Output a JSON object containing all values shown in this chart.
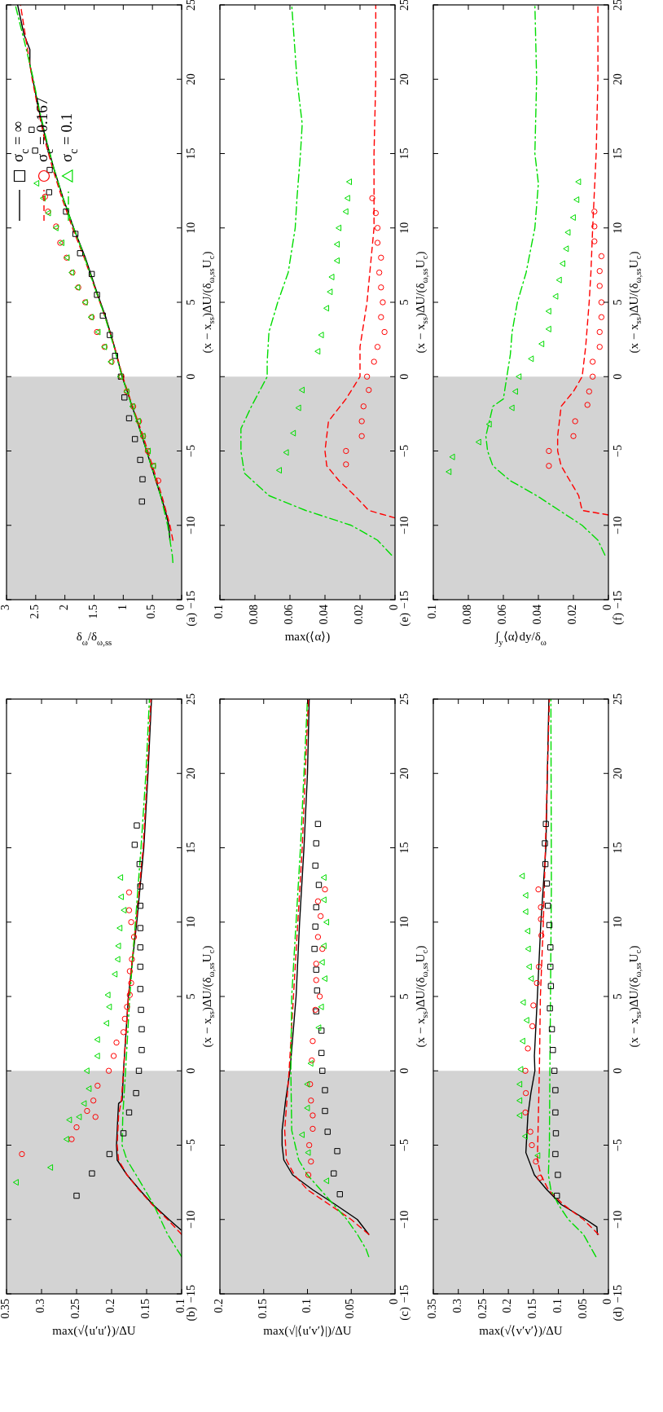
{
  "chart_data": [
    {
      "type": "line",
      "title": "(a)",
      "ylabel": "(x − x$_{ss}$)ΔU/(δ$_{ω,ss}$U$_{c}$)",
      "xlabel": "δ$_{ω}$/δ$_{ω,ss}$",
      "ylim": [
        -15,
        25
      ],
      "xlim": [
        3,
        0
      ],
      "yticks": [
        {
          "value": -15,
          "label": "−15"
        },
        {
          "value": -10,
          "label": "−10"
        },
        {
          "value": -5,
          "label": "−5"
        },
        0,
        5,
        10,
        15,
        20,
        25
      ],
      "xticks": [
        0,
        0.5,
        1,
        1.5,
        2,
        2.5,
        3
      ],
      "legend": "top left",
      "bands": [
        {
          "axis": "y",
          "from": -15,
          "to": 0,
          "color": "#d3d3d3"
        }
      ],
      "series": [
        {
          "type": "line",
          "name": "σ$_{c}$ = ∞",
          "color": "#000000",
          "line_style": "solid",
          "values": [
            -11,
            -10,
            -9,
            -8,
            -7,
            -6,
            -5,
            -4,
            -3,
            -2,
            -1,
            0,
            2,
            4,
            6,
            8,
            10,
            12,
            14,
            16,
            18,
            20,
            21,
            22,
            23,
            25
          ],
          "x": [
            0.2,
            0.22,
            0.28,
            0.36,
            0.44,
            0.52,
            0.6,
            0.68,
            0.76,
            0.85,
            0.93,
            1.02,
            1.15,
            1.3,
            1.48,
            1.65,
            1.85,
            2.03,
            2.19,
            2.33,
            2.45,
            2.55,
            2.6,
            2.6,
            2.7,
            2.81
          ]
        },
        {
          "type": "line",
          "name": "σ$_{c}$ = 0.167",
          "color": "#ff0000",
          "line_style": "dashed",
          "values": [
            -11,
            -10,
            -8,
            -6,
            -4,
            -2,
            0,
            2,
            4,
            6,
            8,
            10,
            12,
            14,
            16,
            18,
            20,
            22,
            25
          ],
          "x": [
            0.15,
            0.2,
            0.34,
            0.5,
            0.66,
            0.84,
            1.01,
            1.15,
            1.31,
            1.49,
            1.67,
            1.87,
            2.05,
            2.21,
            2.35,
            2.46,
            2.56,
            2.64,
            2.76
          ]
        },
        {
          "type": "line",
          "name": "σ$_{c}$ = 0.1",
          "color": "#00dd00",
          "line_style": "dashdot",
          "values": [
            -12.5,
            -12,
            -10,
            -8,
            -6,
            -4,
            -2,
            0,
            2,
            4,
            6,
            8,
            10,
            12,
            14,
            16,
            18,
            20,
            22,
            25
          ],
          "x": [
            0.15,
            0.16,
            0.24,
            0.36,
            0.52,
            0.68,
            0.85,
            1.02,
            1.16,
            1.31,
            1.49,
            1.66,
            1.85,
            2.03,
            2.19,
            2.32,
            2.44,
            2.54,
            2.66,
            2.85
          ]
        },
        {
          "type": "scatter",
          "marker": "square",
          "color": "#000000",
          "values": [
            16.6,
            15.2,
            13.9,
            12.4,
            11.1,
            9.6,
            8.3,
            6.9,
            5.5,
            4.1,
            2.8,
            1.4,
            0,
            -1.4,
            -2.8,
            -4.2,
            -5.6,
            -6.9,
            -8.4
          ],
          "x": [
            2.57,
            2.51,
            2.26,
            2.27,
            1.98,
            1.82,
            1.74,
            1.54,
            1.45,
            1.35,
            1.23,
            1.14,
            1.04,
            0.98,
            0.9,
            0.8,
            0.71,
            0.67,
            0.68
          ]
        },
        {
          "type": "scatter",
          "marker": "circle",
          "color": "#ff0000",
          "values": [
            12.1,
            11.1,
            10.1,
            9,
            8,
            7,
            6,
            5,
            4,
            3,
            2,
            1,
            0,
            -1,
            -2,
            -3,
            -4,
            -5,
            -6,
            -7
          ],
          "x": [
            2.34,
            2.29,
            2.15,
            2.08,
            1.97,
            1.87,
            1.77,
            1.65,
            1.54,
            1.45,
            1.32,
            1.2,
            1.03,
            0.94,
            0.83,
            0.73,
            0.66,
            0.58,
            0.49,
            0.4
          ]
        },
        {
          "type": "scatter",
          "marker": "triangle",
          "color": "#00dd00",
          "values": [
            13,
            12,
            11,
            10,
            9,
            8,
            7,
            6,
            5,
            4,
            3,
            2,
            1,
            0,
            -1,
            -2,
            -3,
            -4,
            -5,
            -6
          ],
          "x": [
            2.48,
            2.37,
            2.28,
            2.15,
            2.05,
            1.96,
            1.88,
            1.78,
            1.65,
            1.55,
            1.43,
            1.32,
            1.21,
            1.05,
            0.94,
            0.84,
            0.74,
            0.66,
            0.57,
            0.48
          ]
        }
      ]
    },
    {
      "type": "line",
      "title": "(b)",
      "ylabel": "(x − x$_{ss}$)ΔU/(δ$_{ω,ss}$U$_{c}$)",
      "xlabel": "max(√⟨u′u′⟩)/ΔU",
      "ylim": [
        -15,
        25
      ],
      "xlim": [
        0.35,
        0.1
      ],
      "yticks": [
        {
          "value": -15,
          "label": "−15"
        },
        {
          "value": -10,
          "label": "−10"
        },
        {
          "value": -5,
          "label": "−5"
        },
        0,
        5,
        10,
        15,
        20,
        25
      ],
      "xticks": [
        0.1,
        0.15,
        0.2,
        0.25,
        0.3,
        0.35
      ],
      "bands": [
        {
          "axis": "y",
          "from": -15,
          "to": 0,
          "color": "#d3d3d3"
        }
      ],
      "series": [
        {
          "type": "line",
          "color": "#000000",
          "line_style": "solid",
          "values": [
            -10.7,
            -10,
            -9,
            -8,
            -7,
            -6,
            -5,
            -3,
            -2.2,
            -2,
            0,
            5,
            10,
            15,
            20,
            25
          ],
          "x": [
            0.101,
            0.118,
            0.141,
            0.16,
            0.178,
            0.192,
            0.193,
            0.191,
            0.19,
            0.185,
            0.183,
            0.176,
            0.164,
            0.154,
            0.148,
            0.143
          ]
        },
        {
          "type": "line",
          "color": "#ff0000",
          "line_style": "dashed",
          "values": [
            -11,
            -10,
            -9,
            -8,
            -7,
            -6,
            -5,
            -3,
            -2,
            0,
            5,
            10,
            15,
            20,
            25
          ],
          "x": [
            0.1,
            0.12,
            0.142,
            0.161,
            0.178,
            0.19,
            0.192,
            0.19,
            0.186,
            0.183,
            0.176,
            0.165,
            0.155,
            0.149,
            0.144
          ]
        },
        {
          "type": "line",
          "color": "#00dd00",
          "line_style": "dashdot",
          "values": [
            -12.5,
            -11,
            -9,
            -7,
            -6,
            -5,
            -3,
            0,
            5,
            10,
            15,
            20,
            25
          ],
          "x": [
            0.1,
            0.12,
            0.14,
            0.165,
            0.178,
            0.185,
            0.184,
            0.18,
            0.174,
            0.166,
            0.158,
            0.151,
            0.146
          ]
        },
        {
          "type": "scatter",
          "marker": "square",
          "color": "#000000",
          "values": [
            16.5,
            15.2,
            13.9,
            12.4,
            11.1,
            9.6,
            8.3,
            7,
            5.5,
            4.1,
            2.8,
            1.4,
            0,
            -1.5,
            -2.8,
            -4.2,
            -5.6,
            -6.9,
            -8.4
          ],
          "x": [
            0.164,
            0.167,
            0.16,
            0.159,
            0.159,
            0.159,
            0.159,
            0.159,
            0.159,
            0.158,
            0.157,
            0.157,
            0.161,
            0.165,
            0.175,
            0.183,
            0.203,
            0.228,
            0.25
          ]
        },
        {
          "type": "scatter",
          "marker": "circle",
          "color": "#ff0000",
          "values": [
            12,
            10.8,
            10,
            9,
            7.5,
            6.7,
            5.9,
            5.1,
            4.3,
            3.5,
            2.6,
            1.9,
            1,
            0,
            -1,
            -2,
            -2.7,
            -3.1,
            -3.8,
            -4.6,
            -5.6
          ],
          "x": [
            0.175,
            0.175,
            0.172,
            0.168,
            0.171,
            0.174,
            0.172,
            0.174,
            0.178,
            0.181,
            0.183,
            0.193,
            0.197,
            0.204,
            0.22,
            0.226,
            0.235,
            0.223,
            0.25,
            0.257,
            0.328
          ]
        },
        {
          "type": "scatter",
          "marker": "triangle",
          "color": "#00dd00",
          "values": [
            13,
            11.7,
            10.8,
            9.6,
            8.4,
            7.5,
            6.5,
            5.1,
            4.3,
            3.2,
            2.1,
            1,
            0,
            -1.2,
            -2.2,
            -3.1,
            -3.3,
            -4.6,
            -6.5,
            -7.5
          ],
          "x": [
            0.187,
            0.186,
            0.182,
            0.188,
            0.19,
            0.191,
            0.195,
            0.205,
            0.203,
            0.207,
            0.22,
            0.22,
            0.235,
            0.232,
            0.239,
            0.246,
            0.26,
            0.264,
            0.287,
            0.336
          ]
        }
      ]
    },
    {
      "type": "line",
      "title": "(c)",
      "ylabel": "(x − x$_{ss}$)ΔU/(δ$_{ω,ss}$U$_{c}$)",
      "xlabel": "max(√|⟨u′v′⟩|)/ΔU",
      "ylim": [
        -15,
        25
      ],
      "xlim": [
        0.2,
        0
      ],
      "yticks": [
        {
          "value": -15,
          "label": "−15"
        },
        {
          "value": -10,
          "label": "−10"
        },
        {
          "value": -5,
          "label": "−5"
        },
        0,
        5,
        10,
        15,
        20,
        25
      ],
      "xticks": [
        0,
        0.05,
        0.1,
        0.15,
        0.2
      ],
      "bands": [
        {
          "axis": "y",
          "from": -15,
          "to": 0,
          "color": "#d3d3d3"
        }
      ],
      "series": [
        {
          "type": "line",
          "color": "#000000",
          "line_style": "solid",
          "values": [
            -11,
            -10,
            -9,
            -8,
            -7,
            -6,
            -5,
            -4,
            -2,
            0,
            5,
            10,
            15,
            20,
            25
          ],
          "x": [
            0.03,
            0.043,
            0.068,
            0.094,
            0.117,
            0.127,
            0.129,
            0.129,
            0.125,
            0.12,
            0.113,
            0.109,
            0.104,
            0.1,
            0.098
          ]
        },
        {
          "type": "line",
          "color": "#ff0000",
          "line_style": "dashed",
          "values": [
            -11,
            -10,
            -9,
            -8,
            -7,
            -6,
            -4,
            0,
            5,
            15,
            25
          ],
          "x": [
            0.03,
            0.05,
            0.075,
            0.1,
            0.115,
            0.124,
            0.126,
            0.121,
            0.116,
            0.106,
            0.099
          ]
        },
        {
          "type": "line",
          "color": "#00dd00",
          "line_style": "dashdot",
          "values": [
            -12.5,
            -12,
            -11,
            -10,
            -9,
            -8,
            -7,
            -6,
            -4,
            0,
            5,
            15,
            25
          ],
          "x": [
            0.03,
            0.033,
            0.043,
            0.055,
            0.07,
            0.085,
            0.1,
            0.11,
            0.118,
            0.119,
            0.118,
            0.108,
            0.1
          ]
        },
        {
          "type": "scatter",
          "marker": "square",
          "color": "#000000",
          "values": [
            16.6,
            15.3,
            13.8,
            12.5,
            11,
            9.7,
            8.2,
            6.8,
            5.4,
            4,
            2.7,
            1.2,
            0,
            -1.3,
            -2.7,
            -4.1,
            -5.4,
            -6.9,
            -8.3
          ],
          "x": [
            0.088,
            0.09,
            0.091,
            0.087,
            0.09,
            0.091,
            0.092,
            0.09,
            0.089,
            0.09,
            0.084,
            0.084,
            0.083,
            0.08,
            0.08,
            0.077,
            0.066,
            0.07,
            0.063
          ]
        },
        {
          "type": "scatter",
          "marker": "circle",
          "color": "#ff0000",
          "values": [
            12.2,
            11.4,
            10.4,
            9,
            8.2,
            7.2,
            6.1,
            5,
            4.1,
            2,
            0.7,
            -0.9,
            -2,
            -3,
            -3.9,
            -5,
            -6.1,
            -7
          ],
          "x": [
            0.08,
            0.088,
            0.085,
            0.088,
            0.083,
            0.09,
            0.09,
            0.086,
            0.091,
            0.094,
            0.095,
            0.097,
            0.096,
            0.094,
            0.094,
            0.098,
            0.096,
            0.099
          ]
        },
        {
          "type": "scatter",
          "marker": "triangle",
          "color": "#00dd00",
          "values": [
            13,
            11.5,
            10,
            8.4,
            7.3,
            6.2,
            4.3,
            2.9,
            0.5,
            -0.9,
            -2.5,
            -4.3,
            -5.5,
            -7.4
          ],
          "x": [
            0.081,
            0.081,
            0.078,
            0.081,
            0.083,
            0.08,
            0.084,
            0.087,
            0.096,
            0.1,
            0.1,
            0.106,
            0.099,
            0.078
          ]
        }
      ]
    },
    {
      "type": "line",
      "title": "(d)",
      "ylabel": "(x − x$_{ss}$)ΔU/(δ$_{ω,ss}$U$_{c}$)",
      "xlabel": "max(√⟨v′v′⟩)/ΔU",
      "ylim": [
        -15,
        25
      ],
      "xlim": [
        0.35,
        0
      ],
      "yticks": [
        {
          "value": -15,
          "label": "−15"
        },
        {
          "value": -10,
          "label": "−10"
        },
        {
          "value": -5,
          "label": "−5"
        },
        0,
        5,
        10,
        15,
        20,
        25
      ],
      "xticks": [
        0,
        0.05,
        0.1,
        0.15,
        0.2,
        0.25,
        0.3,
        0.35
      ],
      "bands": [
        {
          "axis": "y",
          "from": -15,
          "to": 0,
          "color": "#d3d3d3"
        }
      ],
      "series": [
        {
          "type": "line",
          "color": "#000000",
          "line_style": "solid",
          "values": [
            -11,
            -10.5,
            -10,
            -9,
            -8,
            -7,
            -5.5,
            -3,
            -1.5,
            0,
            1,
            5,
            10,
            15,
            25
          ],
          "x": [
            0.022,
            0.023,
            0.045,
            0.094,
            0.123,
            0.148,
            0.165,
            0.161,
            0.155,
            0.147,
            0.148,
            0.142,
            0.135,
            0.125,
            0.119
          ]
        },
        {
          "type": "line",
          "color": "#ff0000",
          "line_style": "dashed",
          "values": [
            -11,
            -10,
            -9,
            -8,
            -7,
            -6,
            -3,
            0,
            5,
            10,
            25
          ],
          "x": [
            0.02,
            0.05,
            0.09,
            0.12,
            0.135,
            0.142,
            0.14,
            0.138,
            0.136,
            0.13,
            0.118
          ]
        },
        {
          "type": "line",
          "color": "#00dd00",
          "line_style": "dashdot",
          "values": [
            -12.5,
            -11,
            -10,
            -9,
            -8,
            -7,
            -5,
            0,
            12.5,
            25
          ],
          "x": [
            0.025,
            0.05,
            0.08,
            0.1,
            0.115,
            0.12,
            0.118,
            0.117,
            0.114,
            0.115
          ]
        },
        {
          "type": "scatter",
          "marker": "square",
          "color": "#000000",
          "values": [
            16.6,
            15.3,
            13.9,
            12.6,
            11.1,
            9.8,
            8.3,
            7,
            5.7,
            4.2,
            2.8,
            1.4,
            0,
            -1.3,
            -2.8,
            -4.2,
            -5.6,
            -7,
            -8.4
          ],
          "x": [
            0.125,
            0.127,
            0.126,
            0.123,
            0.121,
            0.118,
            0.116,
            0.116,
            0.115,
            0.117,
            0.113,
            0.111,
            0.108,
            0.106,
            0.106,
            0.105,
            0.106,
            0.101,
            0.103
          ]
        },
        {
          "type": "scatter",
          "marker": "circle",
          "color": "#ff0000",
          "values": [
            12.2,
            11,
            10.2,
            9.1,
            7,
            5.9,
            4.4,
            3,
            1.5,
            0,
            -1.5,
            -2.8,
            -4.1,
            -5,
            -6.1,
            -7.2
          ],
          "x": [
            0.14,
            0.135,
            0.135,
            0.134,
            0.139,
            0.143,
            0.15,
            0.152,
            0.161,
            0.166,
            0.165,
            0.166,
            0.156,
            0.153,
            0.145,
            0.137
          ]
        },
        {
          "type": "scatter",
          "marker": "triangle",
          "color": "#00dd00",
          "values": [
            13.1,
            11.8,
            10.7,
            9.4,
            8.2,
            7,
            6.2,
            4.6,
            3.4,
            2,
            0.1,
            -0.9,
            -2,
            -3,
            -4.4,
            -5.7
          ],
          "x": [
            0.172,
            0.165,
            0.165,
            0.161,
            0.16,
            0.158,
            0.154,
            0.17,
            0.163,
            0.171,
            0.175,
            0.177,
            0.177,
            0.177,
            0.166,
            0.141
          ]
        }
      ]
    },
    {
      "type": "line",
      "title": "(e)",
      "ylabel": "(x − x$_{ss}$)ΔU/(δ$_{ω,ss}$U$_{c}$)",
      "xlabel": "max(⟨α⟩)",
      "ylim": [
        -15,
        25
      ],
      "xlim": [
        0.1,
        0
      ],
      "yticks": [
        {
          "value": -15,
          "label": "−15"
        },
        {
          "value": -10,
          "label": "−10"
        },
        {
          "value": -5,
          "label": "−5"
        },
        0,
        5,
        10,
        15,
        20,
        25
      ],
      "xticks": [
        0,
        0.02,
        0.04,
        0.06,
        0.08,
        0.1
      ],
      "bands": [
        {
          "axis": "y",
          "from": -15,
          "to": 0,
          "color": "#d3d3d3"
        }
      ],
      "series": [
        {
          "type": "line",
          "color": "#ff0000",
          "line_style": "dashed",
          "values": [
            -9.5,
            -9,
            -8,
            -7,
            -6,
            -5,
            -3,
            -1.5,
            0,
            2,
            5,
            10,
            15,
            20,
            25
          ],
          "x": [
            0,
            0.015,
            0.023,
            0.032,
            0.039,
            0.04,
            0.038,
            0.028,
            0.02,
            0.02,
            0.016,
            0.012,
            0.012,
            0.011,
            0.011
          ]
        },
        {
          "type": "line",
          "color": "#00dd00",
          "line_style": "dashdot",
          "values": [
            -12,
            -11,
            -10,
            -9,
            -8,
            -6.5,
            -5,
            -3.5,
            -2,
            0,
            1,
            3,
            5,
            7,
            10,
            12,
            15,
            17,
            20,
            25
          ],
          "x": [
            0.002,
            0.01,
            0.025,
            0.051,
            0.072,
            0.086,
            0.088,
            0.088,
            0.082,
            0.073,
            0.073,
            0.072,
            0.067,
            0.061,
            0.057,
            0.056,
            0.054,
            0.053,
            0.056,
            0.059
          ]
        },
        {
          "type": "scatter",
          "marker": "circle",
          "color": "#ff0000",
          "values": [
            -5.9,
            -5,
            -4,
            -3,
            -2,
            -0.9,
            0,
            1,
            2,
            3,
            4,
            5,
            6,
            7,
            8,
            9,
            10,
            11,
            12
          ],
          "x": [
            0.028,
            0.028,
            0.019,
            0.019,
            0.018,
            0.015,
            0.016,
            0.012,
            0.01,
            0.006,
            0.008,
            0.007,
            0.008,
            0.009,
            0.008,
            0.01,
            0.01,
            0.011,
            0.013
          ]
        },
        {
          "type": "scatter",
          "marker": "triangle",
          "color": "#00dd00",
          "values": [
            13.1,
            12,
            11.1,
            10,
            8.9,
            7.8,
            6.7,
            5.7,
            4.6,
            2.8,
            1.7,
            -0.9,
            -2.1,
            -3.8,
            -5.1,
            -6.3
          ],
          "x": [
            0.026,
            0.027,
            0.028,
            0.032,
            0.033,
            0.033,
            0.036,
            0.037,
            0.039,
            0.042,
            0.044,
            0.053,
            0.055,
            0.058,
            0.062,
            0.066
          ]
        }
      ]
    },
    {
      "type": "line",
      "title": "(f)",
      "ylabel": "(x − x$_{ss}$)ΔU/(δ$_{ω,ss}$U$_{c}$)",
      "xlabel": "∫$_{y}$⟨α⟩dy/δ$_{ω}$",
      "ylim": [
        -15,
        25
      ],
      "xlim": [
        0.1,
        0
      ],
      "yticks": [
        {
          "value": -15,
          "label": "−15"
        },
        {
          "value": -10,
          "label": "−10"
        },
        {
          "value": -5,
          "label": "−5"
        },
        0,
        5,
        10,
        15,
        20,
        25
      ],
      "xticks": [
        0,
        0.02,
        0.04,
        0.06,
        0.08,
        0.1
      ],
      "bands": [
        {
          "axis": "y",
          "from": -15,
          "to": 0,
          "color": "#d3d3d3"
        }
      ],
      "series": [
        {
          "type": "line",
          "color": "#ff0000",
          "line_style": "dashed",
          "values": [
            -9.3,
            -9,
            -8,
            -7,
            -6,
            -5,
            -4,
            -3,
            -2,
            -1,
            0,
            2,
            5,
            7,
            10,
            15,
            20,
            25
          ],
          "x": [
            0,
            0.015,
            0.017,
            0.022,
            0.027,
            0.029,
            0.029,
            0.028,
            0.027,
            0.02,
            0.015,
            0.013,
            0.011,
            0.01,
            0.009,
            0.007,
            0.006,
            0.006
          ]
        },
        {
          "type": "line",
          "color": "#00dd00",
          "line_style": "dashdot",
          "values": [
            -12,
            -11,
            -10,
            -9,
            -8,
            -7,
            -6,
            -5,
            -4,
            -3,
            -2,
            -1.5,
            0,
            1.5,
            3,
            5,
            7,
            10,
            13,
            15,
            20,
            25
          ],
          "x": [
            0.002,
            0.006,
            0.015,
            0.028,
            0.041,
            0.056,
            0.066,
            0.069,
            0.07,
            0.068,
            0.066,
            0.06,
            0.058,
            0.056,
            0.055,
            0.052,
            0.047,
            0.042,
            0.04,
            0.042,
            0.041,
            0.042
          ]
        },
        {
          "type": "scatter",
          "marker": "circle",
          "color": "#ff0000",
          "values": [
            -6,
            -5,
            -4,
            -3,
            -1.9,
            -1,
            0,
            1,
            2,
            3,
            4,
            5,
            6.1,
            7.1,
            8.1,
            9.1,
            10.1,
            11.1
          ],
          "x": [
            0.034,
            0.034,
            0.02,
            0.019,
            0.012,
            0.011,
            0.009,
            0.009,
            0.005,
            0.005,
            0.004,
            0.004,
            0.005,
            0.005,
            0.004,
            0.008,
            0.008,
            0.008
          ]
        },
        {
          "type": "scatter",
          "marker": "triangle",
          "color": "#00dd00",
          "values": [
            -6.4,
            -5.4,
            -4.4,
            -3.2,
            -2.1,
            -1,
            0,
            1.2,
            2.2,
            3.2,
            4.4,
            5.4,
            6.5,
            7.6,
            8.6,
            9.7,
            10.7,
            11.9,
            13.1
          ],
          "x": [
            0.091,
            0.089,
            0.074,
            0.068,
            0.055,
            0.053,
            0.051,
            0.044,
            0.038,
            0.034,
            0.034,
            0.03,
            0.028,
            0.026,
            0.024,
            0.023,
            0.02,
            0.018,
            0.017
          ]
        }
      ]
    }
  ]
}
